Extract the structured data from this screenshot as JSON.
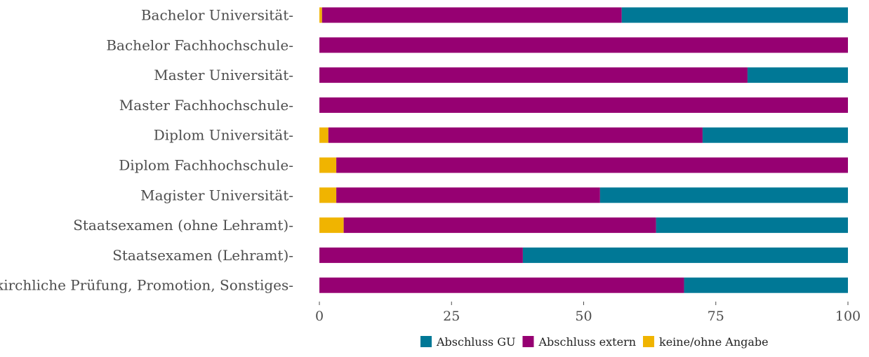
{
  "colors": {
    "Abschluss GU": "#007896",
    "Abschluss extern": "#960072",
    "keine/ohne Angabe": "#f0b400"
  },
  "chart_data": {
    "type": "bar",
    "orientation": "horizontal",
    "stacked": true,
    "categories": [
      "Bachelor Universität",
      "Bachelor Fachhochschule",
      "Master Universität",
      "Master Fachhochschule",
      "Diplom Universität",
      "Diplom Fachhochschule",
      "Magister Universität",
      "Staatsexamen (ohne Lehramt)",
      "Staatsexamen (Lehramt)",
      "kirchliche Prüfung, Promotion, Sonstiges"
    ],
    "series": [
      {
        "name": "keine/ohne Angabe",
        "values": [
          0.5,
          0,
          0,
          0,
          1.7,
          3.2,
          3.2,
          4.6,
          0,
          0
        ]
      },
      {
        "name": "Abschluss extern",
        "values": [
          56.7,
          100,
          81.0,
          100,
          70.8,
          96.8,
          49.9,
          59.1,
          38.5,
          69.0
        ]
      },
      {
        "name": "Abschluss GU",
        "values": [
          42.8,
          0,
          19.0,
          0,
          27.5,
          0,
          46.9,
          36.3,
          61.5,
          31.0
        ]
      }
    ],
    "xlim": [
      0,
      100
    ],
    "xticks": [
      "0",
      "25",
      "50",
      "75",
      "100"
    ],
    "legend_order": [
      "Abschluss GU",
      "Abschluss extern",
      "keine/ohne Angabe"
    ],
    "legend_position": "bottom",
    "grid": false
  }
}
